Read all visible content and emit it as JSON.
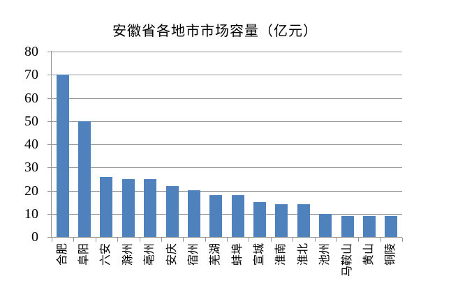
{
  "chart_data": {
    "type": "bar",
    "title": "安徽省各地市市场容量（亿元）",
    "categories": [
      "合肥",
      "阜阳",
      "六安",
      "滁州",
      "亳州",
      "安庆",
      "宿州",
      "芜湖",
      "蚌埠",
      "宣城",
      "淮南",
      "淮北",
      "池州",
      "马鞍山",
      "黄山",
      "铜陵"
    ],
    "values": [
      70,
      50,
      26,
      25,
      25,
      22,
      20,
      18,
      18,
      15,
      14,
      14,
      10,
      9,
      9,
      9
    ],
    "xlabel": "",
    "ylabel": "",
    "ylim": [
      0,
      80
    ],
    "yticks": [
      0,
      10,
      20,
      30,
      40,
      50,
      60,
      70,
      80
    ],
    "grid": true,
    "legend_position": "none",
    "colors": {
      "bar": "#4F81BD",
      "gridline": "#969696",
      "axis": "#969696",
      "text": "#000000",
      "background": "#FFFFFF"
    }
  }
}
